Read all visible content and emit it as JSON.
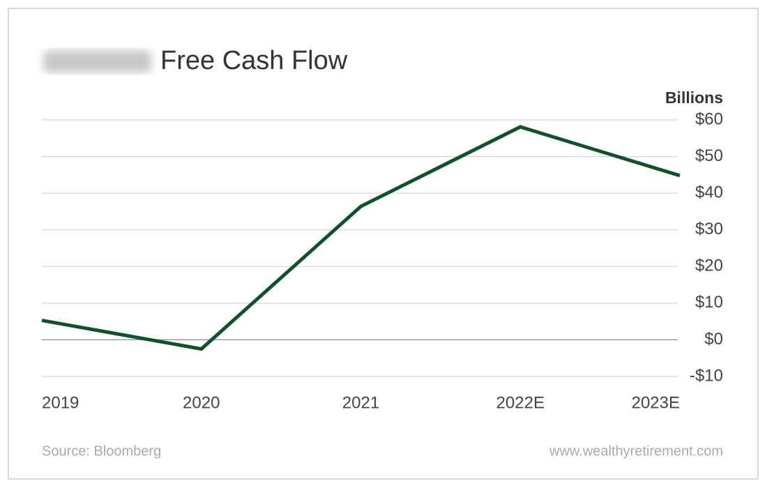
{
  "chart_data": {
    "type": "line",
    "title": "Free Cash Flow",
    "y_axis_label": "Billions",
    "categories": [
      "2019",
      "2020",
      "2021",
      "2022E",
      "2023E"
    ],
    "series": [
      {
        "name": "Free Cash Flow",
        "color": "#0f5128",
        "values": [
          5.3,
          -2.5,
          36.4,
          58.1,
          44.8
        ]
      }
    ],
    "ylim": [
      -10,
      60
    ],
    "yticks": [
      {
        "value": -10,
        "label": "-$10"
      },
      {
        "value": 0,
        "label": "$0"
      },
      {
        "value": 10,
        "label": "$10"
      },
      {
        "value": 20,
        "label": "$20"
      },
      {
        "value": 30,
        "label": "$30"
      },
      {
        "value": 40,
        "label": "$40"
      },
      {
        "value": 50,
        "label": "$50"
      },
      {
        "value": 60,
        "label": "$60"
      }
    ],
    "grid": true,
    "source": "Source: Bloomberg",
    "website": "www.wealthyretirement.com"
  }
}
